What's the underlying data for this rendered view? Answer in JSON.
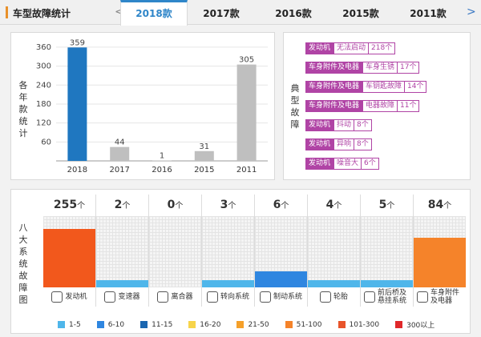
{
  "header": {
    "title": "车型故障统计",
    "prev": "<",
    "next": ">",
    "tabs": [
      {
        "label": "2018款",
        "active": true
      },
      {
        "label": "2017款",
        "active": false
      },
      {
        "label": "2016款",
        "active": false
      },
      {
        "label": "2015款",
        "active": false
      },
      {
        "label": "2011款",
        "active": false
      }
    ]
  },
  "year_panel": {
    "ylabel": "各年款统计",
    "chart_data": {
      "type": "bar",
      "categories": [
        "2018",
        "2017",
        "2016",
        "2015",
        "2011"
      ],
      "values": [
        359,
        44,
        1,
        31,
        305
      ],
      "colors": [
        "#1f77c0",
        "#bfbfbf",
        "#bfbfbf",
        "#bfbfbf",
        "#bfbfbf"
      ],
      "yticks": [
        "60",
        "120",
        "180",
        "240",
        "300",
        "360"
      ],
      "ylim": [
        0,
        380
      ],
      "grid": true
    }
  },
  "typical_panel": {
    "label": "典型故障",
    "faults": [
      {
        "category": "发动机",
        "issue": "无法启动",
        "count": "218个"
      },
      {
        "category": "车身附件及电器",
        "issue": "车身生锈",
        "count": "17个"
      },
      {
        "category": "车身附件及电器",
        "issue": "车钥匙故障",
        "count": "14个"
      },
      {
        "category": "车身附件及电器",
        "issue": "电器故障",
        "count": "11个"
      },
      {
        "category": "发动机",
        "issue": "抖动",
        "count": "8个"
      },
      {
        "category": "发动机",
        "issue": "异响",
        "count": "8个"
      },
      {
        "category": "发动机",
        "issue": "噪音大",
        "count": "6个"
      }
    ]
  },
  "systems_panel": {
    "label": "八大系统故障图",
    "unit": "个",
    "systems": [
      {
        "name": "发动机",
        "count": "255",
        "level": 0.82,
        "color": "#f2581c",
        "icon": "engine-icon"
      },
      {
        "name": "变速器",
        "count": "2",
        "level": 0.1,
        "color": "#4fb6ea",
        "icon": "gear-shift-icon"
      },
      {
        "name": "离合器",
        "count": "0",
        "level": 0,
        "color": "#4fb6ea",
        "icon": "clutch-icon"
      },
      {
        "name": "转向系统",
        "count": "3",
        "level": 0.1,
        "color": "#4fb6ea",
        "icon": "steering-wheel-icon"
      },
      {
        "name": "制动系统",
        "count": "6",
        "level": 0.22,
        "color": "#2f86e0",
        "icon": "brake-icon"
      },
      {
        "name": "轮胎",
        "count": "4",
        "level": 0.1,
        "color": "#4fb6ea",
        "icon": "tire-icon"
      },
      {
        "name": "前后桥及悬挂系统",
        "count": "5",
        "level": 0.1,
        "color": "#4fb6ea",
        "icon": "axle-icon"
      },
      {
        "name": "车身附件及电器",
        "count": "84",
        "level": 0.7,
        "color": "#f5832a",
        "icon": "car-body-icon"
      }
    ],
    "legend": [
      {
        "label": "1-5",
        "color": "#4fb6ea"
      },
      {
        "label": "6-10",
        "color": "#2f86e0"
      },
      {
        "label": "11-15",
        "color": "#1a66b0"
      },
      {
        "label": "16-20",
        "color": "#f7d44a"
      },
      {
        "label": "21-50",
        "color": "#f5a02a"
      },
      {
        "label": "51-100",
        "color": "#f5832a"
      },
      {
        "label": "101-300",
        "color": "#e8542a"
      },
      {
        "label": "300以上",
        "color": "#e0282a"
      }
    ]
  }
}
